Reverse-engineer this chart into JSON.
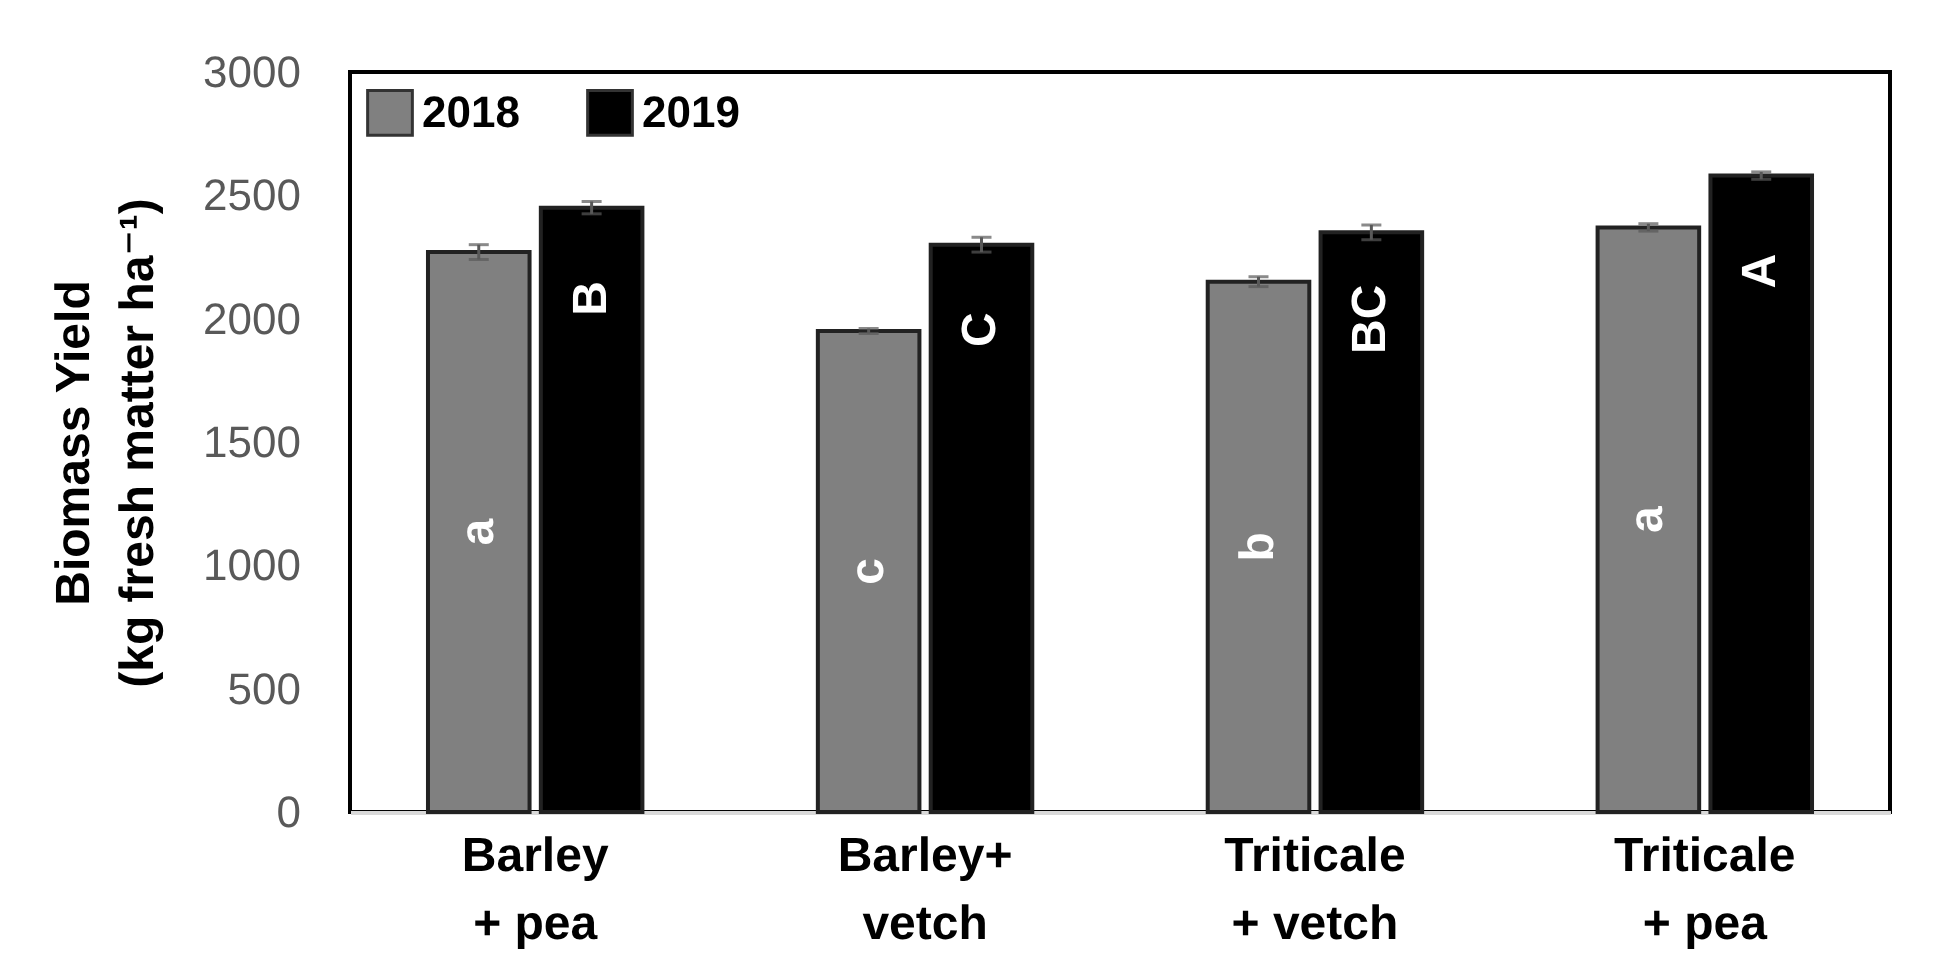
{
  "chart_data": {
    "type": "bar",
    "ylabel": "Biomass Yield\n(kg fresh matter ha⁻¹)",
    "categories": [
      "Barley\n+ pea",
      "Barley+\nvetch",
      "Triticale\n+ vetch",
      "Triticale\n+ pea"
    ],
    "series": [
      {
        "name": "2018",
        "color": "#808080",
        "values": [
          2270,
          1950,
          2150,
          2370
        ],
        "errors": [
          30,
          10,
          20,
          15
        ],
        "value_labels": [
          "a",
          "c",
          "b",
          "a"
        ]
      },
      {
        "name": "2019",
        "color": "#000000",
        "values": [
          2450,
          2300,
          2350,
          2580
        ],
        "errors": [
          25,
          30,
          30,
          15
        ],
        "value_labels": [
          "B",
          "C",
          "BC",
          "A"
        ]
      }
    ],
    "ylim": [
      0,
      3000
    ],
    "yticks": [
      0,
      500,
      1000,
      1500,
      2000,
      2500,
      3000
    ],
    "grid": false,
    "legend": "top left"
  }
}
